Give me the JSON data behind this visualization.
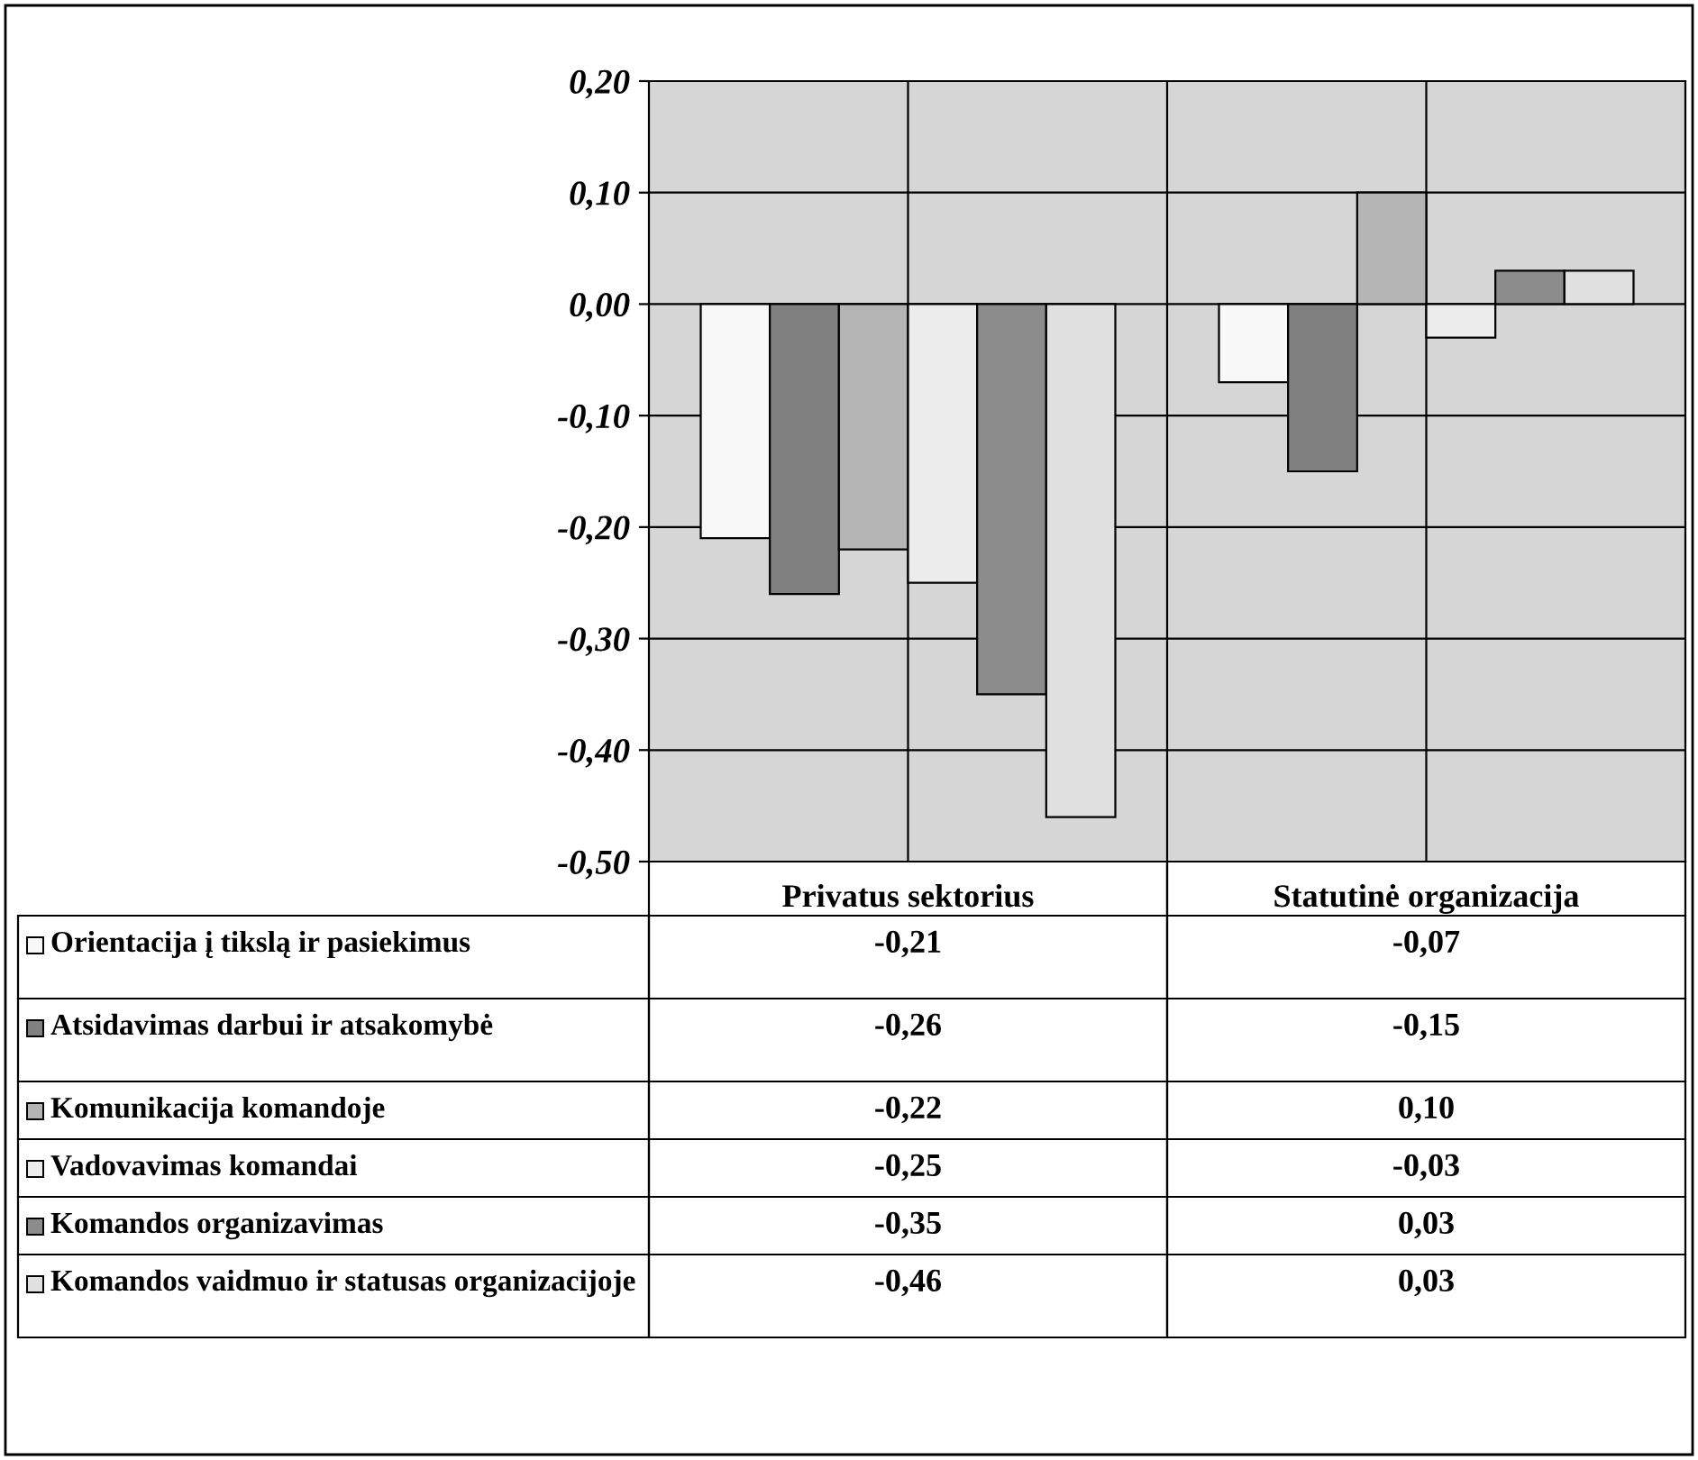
{
  "chart_data": {
    "type": "bar",
    "categories": [
      "Privatus sektorius",
      "Statutinė organizacija"
    ],
    "series": [
      {
        "name": "Orientacija į tikslą ir pasiekimus",
        "color": "#f8f8f8",
        "values": [
          -0.21,
          -0.07
        ],
        "value_labels": [
          "-0,21",
          "-0,07"
        ]
      },
      {
        "name": "Atsidavimas darbui ir atsakomybė",
        "color": "#808080",
        "values": [
          -0.26,
          -0.15
        ],
        "value_labels": [
          "-0,26",
          "-0,15"
        ]
      },
      {
        "name": "Komunikacija komandoje",
        "color": "#b4b4b4",
        "values": [
          -0.22,
          0.1
        ],
        "value_labels": [
          "-0,22",
          "0,10"
        ]
      },
      {
        "name": "Vadovavimas komandai",
        "color": "#ececec",
        "values": [
          -0.25,
          -0.03
        ],
        "value_labels": [
          "-0,25",
          "-0,03"
        ]
      },
      {
        "name": "Komandos organizavimas",
        "color": "#8c8c8c",
        "values": [
          -0.35,
          0.03
        ],
        "value_labels": [
          "-0,35",
          "0,03"
        ]
      },
      {
        "name": "Komandos vaidmuo ir statusas organizacijoje",
        "color": "#e0e0e0",
        "values": [
          -0.46,
          0.03
        ],
        "value_labels": [
          "-0,46",
          "0,03"
        ]
      }
    ],
    "ylim": [
      -0.5,
      0.2
    ],
    "yticks": [
      {
        "value": -0.5,
        "label": "-0,50"
      },
      {
        "value": -0.4,
        "label": "-0,40"
      },
      {
        "value": -0.3,
        "label": "-0,30"
      },
      {
        "value": -0.2,
        "label": "-0,20"
      },
      {
        "value": -0.1,
        "label": "-0,10"
      },
      {
        "value": 0.0,
        "label": "0,00"
      },
      {
        "value": 0.1,
        "label": "0,10"
      },
      {
        "value": 0.2,
        "label": "0,20"
      }
    ],
    "grid": true,
    "legend": "bottom"
  }
}
